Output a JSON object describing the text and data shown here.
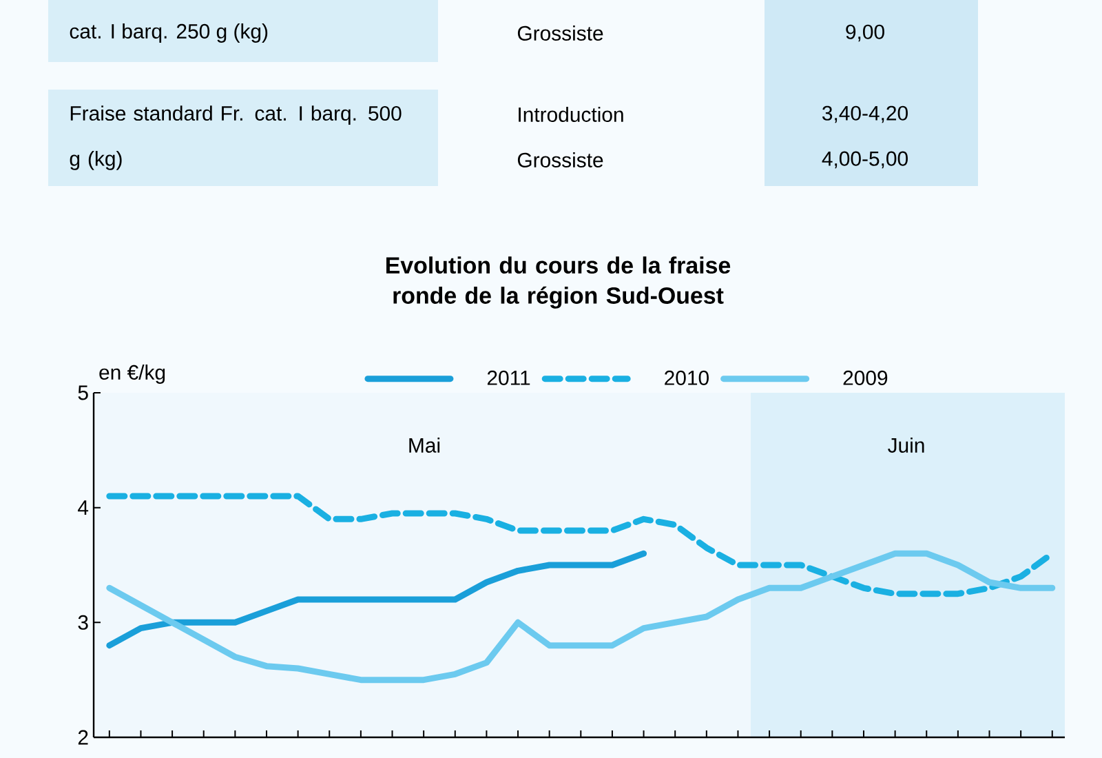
{
  "chart_data": {
    "type": "line",
    "title": "Evolution du cours de la fraise ronde de la région Sud-Ouest",
    "ylabel": "en €/kg",
    "categories": [
      null,
      null,
      null,
      null,
      null,
      null,
      null,
      null,
      null,
      null,
      null,
      null,
      null,
      null,
      null,
      null,
      null,
      null,
      null,
      null,
      null,
      null,
      null,
      null,
      null,
      null,
      null,
      null,
      null,
      null,
      null
    ],
    "series": [
      {
        "name": "2011",
        "color": "#1a9fd9",
        "line_style": "solid",
        "values": [
          2.8,
          2.95,
          3.0,
          3.0,
          3.0,
          3.1,
          3.2,
          3.2,
          3.2,
          3.2,
          3.2,
          3.2,
          3.35,
          3.45,
          3.5,
          3.5,
          3.5,
          3.6,
          null,
          null,
          null,
          null,
          null,
          null,
          null,
          null,
          null,
          null,
          null,
          null,
          null
        ]
      },
      {
        "name": "2010",
        "color": "#1ab0e2",
        "line_style": "dashed",
        "values": [
          4.1,
          4.1,
          4.1,
          4.1,
          4.1,
          4.1,
          4.1,
          3.9,
          3.9,
          3.95,
          3.95,
          3.95,
          3.9,
          3.8,
          3.8,
          3.8,
          3.8,
          3.9,
          3.85,
          3.65,
          3.5,
          3.5,
          3.5,
          3.4,
          3.3,
          3.25,
          3.25,
          3.25,
          3.3,
          3.4,
          3.6
        ]
      },
      {
        "name": "2009",
        "color": "#6ccaef",
        "line_style": "solid",
        "values": [
          3.3,
          3.15,
          3.0,
          2.85,
          2.7,
          2.62,
          2.6,
          2.55,
          2.5,
          2.5,
          2.5,
          2.55,
          2.65,
          3.0,
          2.8,
          2.8,
          2.8,
          2.95,
          3.0,
          3.05,
          3.2,
          3.3,
          3.3,
          3.4,
          3.5,
          3.6,
          3.6,
          3.5,
          3.35,
          3.3,
          3.3
        ]
      }
    ],
    "ylim": [
      2,
      5
    ],
    "yticks": [
      2,
      3,
      4,
      5
    ],
    "tick_labels": "y",
    "legend": "top",
    "annotations": [
      "cat. I barq. 250 g (kg)",
      "Grossiste",
      "9,00",
      "Fraise standard Fr. cat. I barq. 500 g (kg)",
      "Introduction",
      "Grossiste",
      "3,40-4,20",
      "4,00-5,00",
      "Mai",
      "Juin"
    ]
  }
}
